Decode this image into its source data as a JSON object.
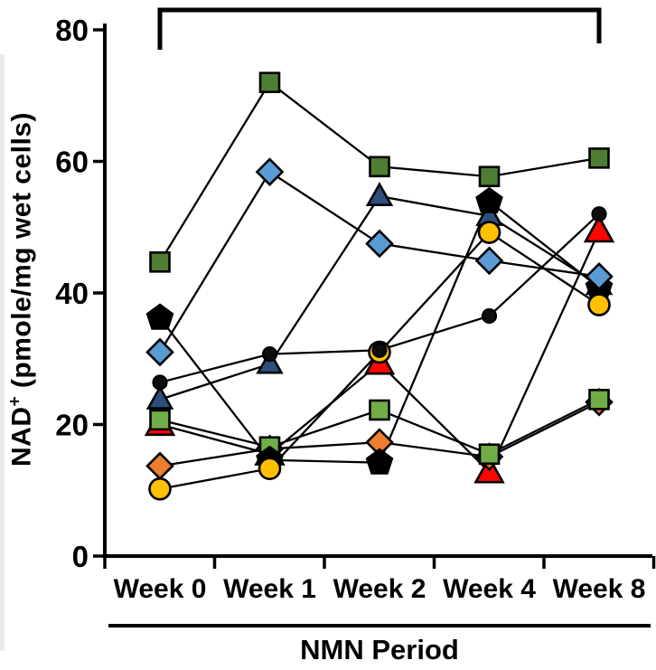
{
  "chart_data": {
    "type": "line",
    "title": "",
    "legend_position": "none",
    "grid": false,
    "x_categories": [
      "Week 0",
      "Week 1",
      "Week 2",
      "Week 4",
      "Week 8"
    ],
    "x_axis_title": "NMN Period",
    "y_axis": {
      "label_prefix": "NAD",
      "label_sup": "+",
      "label_rest": " (pmole/mg wet cells)",
      "ticks": [
        0,
        20,
        40,
        60,
        80
      ],
      "range": [
        0,
        80
      ]
    },
    "series": [
      {
        "name": "subject-red-triangle",
        "marker": "triangle-large",
        "color": "#fe0500",
        "values": [
          20.0,
          15.5,
          29.3,
          12.8,
          49.4
        ]
      },
      {
        "name": "subject-orange-diamond",
        "marker": "diamond",
        "color": "#ed7d31",
        "values": [
          13.7,
          16.3,
          17.3,
          15.1,
          23.4
        ]
      },
      {
        "name": "subject-light-green-square",
        "marker": "square",
        "color": "#70ad47",
        "values": [
          20.7,
          16.6,
          22.2,
          15.5,
          23.8
        ]
      },
      {
        "name": "subject-navy-triangle",
        "marker": "triangle",
        "color": "#2e4f7e",
        "values": [
          23.8,
          29.2,
          54.7,
          51.7,
          41.2
        ]
      },
      {
        "name": "subject-black-pentagon",
        "marker": "pentagon",
        "color": "#000000",
        "values": [
          36.2,
          14.6,
          14.2,
          53.9,
          40.8
        ]
      },
      {
        "name": "subject-yellow-circle",
        "marker": "circle-large",
        "color": "#ffc000",
        "values": [
          10.2,
          13.3,
          31.0,
          49.2,
          38.2
        ]
      },
      {
        "name": "subject-black-circle",
        "marker": "circle-small",
        "color": "#0d0d0d",
        "values": [
          26.4,
          30.7,
          31.3,
          36.5,
          52.0
        ]
      },
      {
        "name": "subject-blue-diamond",
        "marker": "diamond",
        "color": "#5b9bd5",
        "values": [
          31.0,
          58.4,
          47.5,
          44.9,
          42.5
        ]
      },
      {
        "name": "subject-dark-green-square",
        "marker": "square",
        "color": "#4e7d33",
        "values": [
          44.7,
          72.0,
          59.2,
          57.7,
          60.5
        ]
      }
    ],
    "annotation_bracket": {
      "from_category": "Week 0",
      "to_category": "Week 8",
      "label": ""
    },
    "line_color": "#000000"
  }
}
